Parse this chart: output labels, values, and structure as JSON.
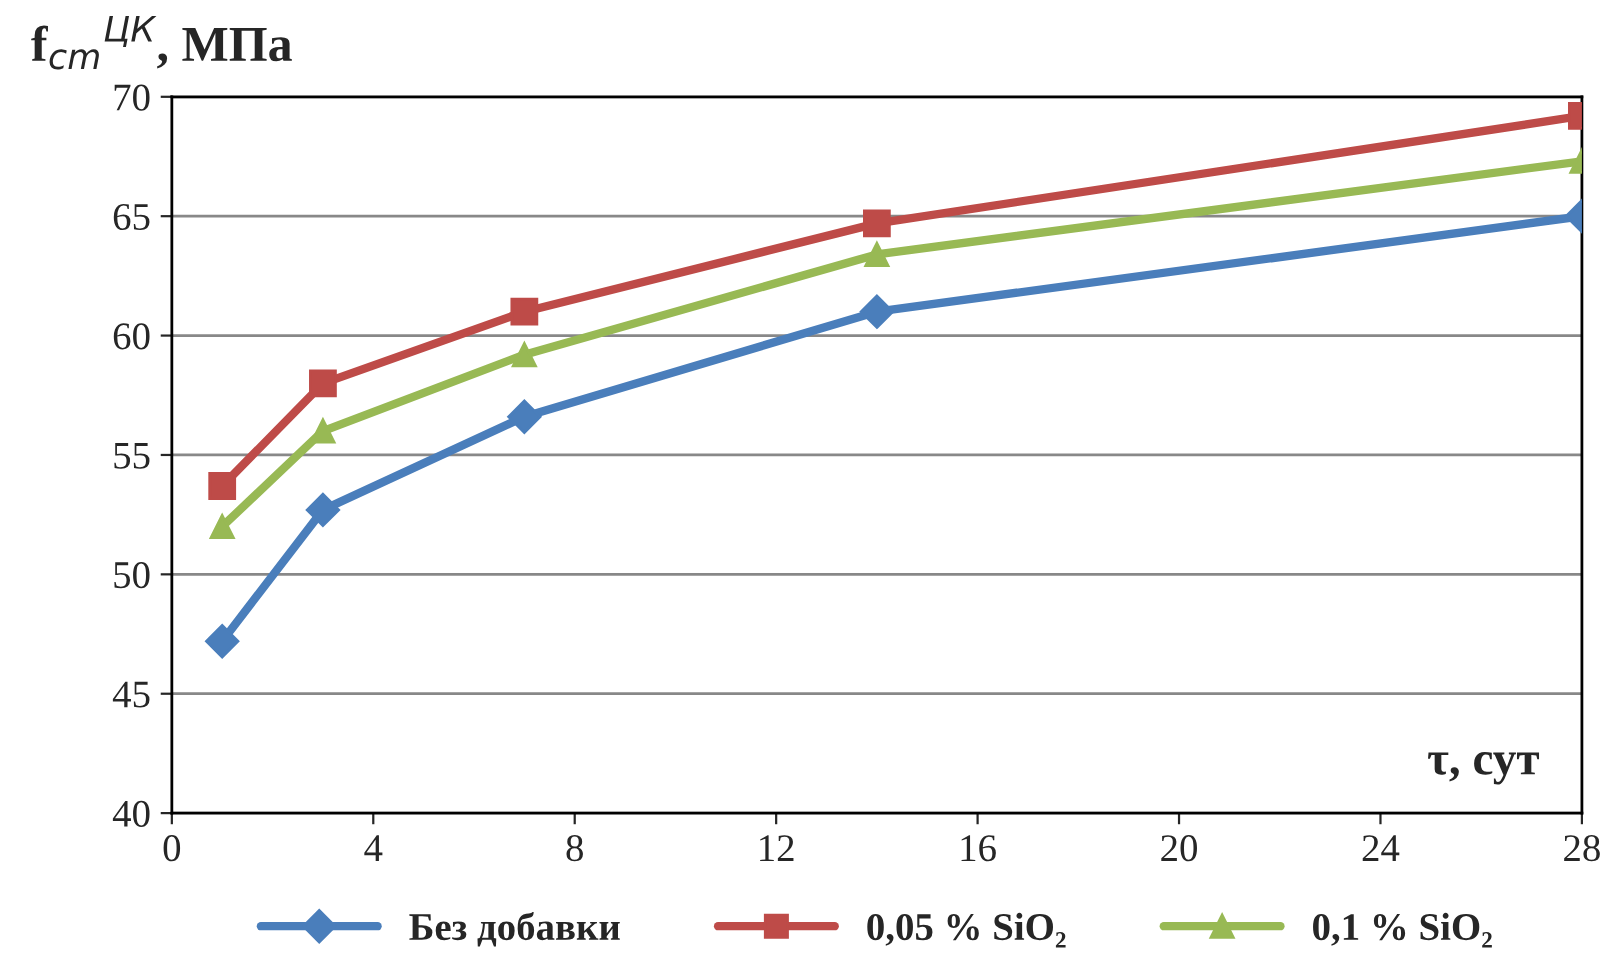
{
  "chart_data": {
    "type": "line",
    "ylabel": "f$_{cm}$$^{ЦК}$, МПа",
    "xlabel": "τ, сут",
    "x": [
      1,
      3,
      7,
      14,
      28
    ],
    "series": [
      {
        "name": "Без добавки",
        "color": "#4a7ebb",
        "values": [
          47.2,
          52.7,
          56.6,
          61.0,
          65.0
        ],
        "marker": "diamond"
      },
      {
        "name": "0,05 % SiO₂",
        "color": "#be4b48",
        "values": [
          53.7,
          58.0,
          61.0,
          64.7,
          69.2
        ],
        "marker": "square"
      },
      {
        "name": "0,1 % SiO₂",
        "color": "#98b954",
        "values": [
          52.0,
          56.0,
          59.2,
          63.4,
          67.3
        ],
        "marker": "triangle"
      }
    ],
    "xlim": [
      0,
      28
    ],
    "xticks": [
      0,
      4,
      8,
      12,
      16,
      20,
      24,
      28
    ],
    "ylim": [
      40,
      70
    ],
    "yticks": [
      40,
      45,
      50,
      55,
      60,
      65,
      70
    ],
    "grid": "y",
    "legend": "bottom",
    "line_style": "solid"
  }
}
